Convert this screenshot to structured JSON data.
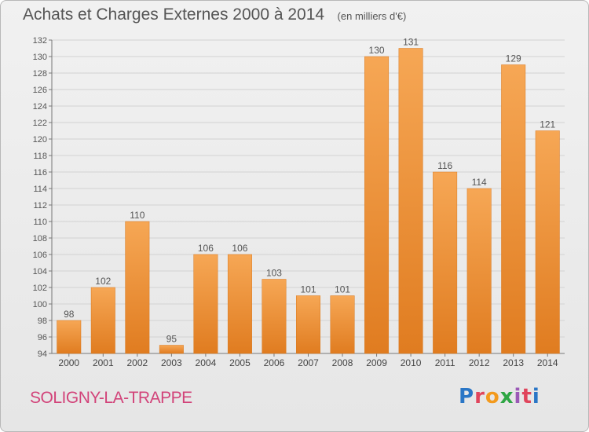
{
  "header": {
    "title": "Achats et Charges Externes 2000 à 2014",
    "unit": "(en milliers d'€)"
  },
  "footer": {
    "commune": "SOLIGNY-LA-TRAPPE",
    "logo_icon": "proxiti-logo"
  },
  "colors": {
    "bar_light": "#f6a755",
    "bar_dark": "#e07c20",
    "grid": "#cfcfcf",
    "text": "#555555",
    "commune": "#d2447a"
  },
  "chart_data": {
    "type": "bar",
    "categories": [
      "2000",
      "2001",
      "2002",
      "2003",
      "2004",
      "2005",
      "2006",
      "2007",
      "2008",
      "2009",
      "2010",
      "2011",
      "2012",
      "2013",
      "2014"
    ],
    "values": [
      98,
      102,
      110,
      95,
      106,
      106,
      103,
      101,
      101,
      130,
      131,
      116,
      114,
      129,
      121
    ],
    "ylim": [
      94,
      132
    ],
    "yticks": [
      94,
      96,
      98,
      100,
      102,
      104,
      106,
      108,
      110,
      112,
      114,
      116,
      118,
      120,
      122,
      124,
      126,
      128,
      130,
      132
    ],
    "grid": true,
    "data_labels": true
  }
}
